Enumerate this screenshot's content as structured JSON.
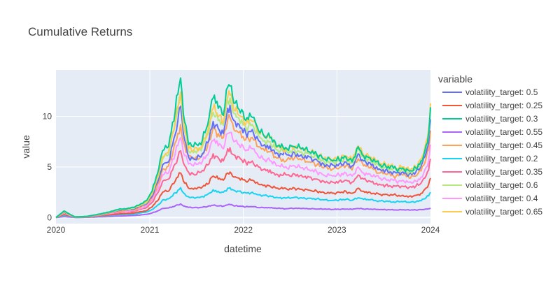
{
  "chart_data": {
    "type": "line",
    "title": "Cumulative Returns",
    "xlabel": "datetime",
    "ylabel": "value",
    "xlim": [
      "2020-01-01",
      "2024-01-01"
    ],
    "ylim": [
      -0.6,
      14.6
    ],
    "x_ticks": [
      "2020",
      "2021",
      "2022",
      "2023",
      "2024"
    ],
    "y_ticks": [
      0,
      5,
      10
    ],
    "grid": true,
    "legend": {
      "title": "variable",
      "placement": "right"
    },
    "x": [
      "2020-01-01",
      "2020-02-01",
      "2020-03-15",
      "2020-05-01",
      "2020-07-01",
      "2020-09-01",
      "2020-11-01",
      "2020-12-20",
      "2021-01-10",
      "2021-02-05",
      "2021-02-20",
      "2021-03-15",
      "2021-04-10",
      "2021-05-01",
      "2021-05-12",
      "2021-06-01",
      "2021-06-20",
      "2021-07-20",
      "2021-08-15",
      "2021-09-05",
      "2021-09-25",
      "2021-10-15",
      "2021-11-01",
      "2021-11-10",
      "2021-11-25",
      "2021-12-15",
      "2022-01-10",
      "2022-02-05",
      "2022-03-01",
      "2022-03-25",
      "2022-04-15",
      "2022-05-10",
      "2022-06-20",
      "2022-07-20",
      "2022-08-15",
      "2022-09-15",
      "2022-10-15",
      "2022-11-10",
      "2022-12-15",
      "2023-01-10",
      "2023-02-05",
      "2023-03-01",
      "2023-03-25",
      "2023-04-15",
      "2023-05-10",
      "2023-06-15",
      "2023-07-10",
      "2023-08-20",
      "2023-09-15",
      "2023-10-10",
      "2023-11-05",
      "2023-11-25",
      "2023-12-10",
      "2023-12-25",
      "2024-01-01"
    ],
    "series": [
      {
        "name": "volatility_target: 0.5",
        "color": "#636efa",
        "values": [
          0,
          0.55,
          0.05,
          0.1,
          0.35,
          0.7,
          0.85,
          1.4,
          2.1,
          3.8,
          5.2,
          5.5,
          8.2,
          11.0,
          8.3,
          6.0,
          5.8,
          6.0,
          7.4,
          9.5,
          8.8,
          8.3,
          10.8,
          11.1,
          9.6,
          9.2,
          8.4,
          8.7,
          7.6,
          7.2,
          7.1,
          6.4,
          6.2,
          6.4,
          6.2,
          6.0,
          5.7,
          5.3,
          5.2,
          5.3,
          5.5,
          5.1,
          6.3,
          5.6,
          5.4,
          4.8,
          4.7,
          4.4,
          4.5,
          4.3,
          4.5,
          5.1,
          6.0,
          7.4,
          9.7
        ]
      },
      {
        "name": "volatility_target: 0.25",
        "color": "#ef553b",
        "values": [
          0,
          0.3,
          0.03,
          0.05,
          0.2,
          0.35,
          0.45,
          0.7,
          1.05,
          1.8,
          2.5,
          2.6,
          3.6,
          4.4,
          3.6,
          2.9,
          2.8,
          2.9,
          3.3,
          4.1,
          3.8,
          3.7,
          4.4,
          4.5,
          4.0,
          3.9,
          3.6,
          3.7,
          3.3,
          3.2,
          3.1,
          2.9,
          2.8,
          2.9,
          2.8,
          2.7,
          2.6,
          2.5,
          2.4,
          2.5,
          2.6,
          2.4,
          2.9,
          2.6,
          2.5,
          2.3,
          2.3,
          2.2,
          2.2,
          2.1,
          2.2,
          2.4,
          2.8,
          3.3,
          3.9
        ]
      },
      {
        "name": "volatility_target: 0.3",
        "color": "#00cc96",
        "values": [
          0,
          0.65,
          0.06,
          0.12,
          0.4,
          0.8,
          1.0,
          1.7,
          2.6,
          4.8,
          6.6,
          7.0,
          10.5,
          13.8,
          10.2,
          7.2,
          7.0,
          7.2,
          9.2,
          11.8,
          10.8,
          10.1,
          12.9,
          13.0,
          11.3,
          10.7,
          9.6,
          9.9,
          8.6,
          8.0,
          7.9,
          7.0,
          6.8,
          7.0,
          6.8,
          6.5,
          6.2,
          5.8,
          5.6,
          5.7,
          6.0,
          5.5,
          7.0,
          6.1,
          5.9,
          5.2,
          5.1,
          4.8,
          4.9,
          4.6,
          4.9,
          5.6,
          6.6,
          8.4,
          10.9
        ]
      },
      {
        "name": "volatility_target: 0.55",
        "color": "#ab63fa",
        "values": [
          0,
          0.1,
          0.01,
          0.02,
          0.08,
          0.15,
          0.2,
          0.32,
          0.45,
          0.7,
          0.9,
          0.95,
          1.15,
          1.35,
          1.15,
          1.0,
          0.97,
          1.0,
          1.1,
          1.2,
          1.15,
          1.12,
          1.25,
          1.27,
          1.15,
          1.12,
          1.05,
          1.07,
          0.98,
          0.96,
          0.95,
          0.9,
          0.88,
          0.9,
          0.88,
          0.86,
          0.84,
          0.82,
          0.8,
          0.81,
          0.83,
          0.8,
          0.9,
          0.84,
          0.82,
          0.78,
          0.77,
          0.75,
          0.76,
          0.74,
          0.75,
          0.78,
          0.82,
          0.87,
          0.95
        ]
      },
      {
        "name": "volatility_target: 0.45",
        "color": "#ffa15a",
        "values": [
          0,
          0.5,
          0.05,
          0.09,
          0.32,
          0.62,
          0.78,
          1.3,
          2.0,
          3.5,
          4.8,
          5.1,
          7.4,
          9.2,
          7.5,
          6.1,
          5.9,
          6.1,
          7.2,
          8.9,
          8.3,
          7.9,
          9.7,
          9.9,
          8.7,
          8.4,
          7.7,
          7.9,
          7.0,
          6.6,
          6.5,
          5.9,
          5.7,
          5.9,
          5.7,
          5.5,
          5.2,
          4.9,
          4.8,
          4.9,
          5.1,
          4.7,
          5.8,
          5.1,
          4.9,
          4.4,
          4.3,
          4.1,
          4.2,
          3.9,
          4.1,
          4.6,
          5.4,
          6.7,
          8.6
        ]
      },
      {
        "name": "volatility_target: 0.2",
        "color": "#19d3f3",
        "values": [
          0,
          0.2,
          0.02,
          0.04,
          0.15,
          0.28,
          0.35,
          0.55,
          0.8,
          1.3,
          1.75,
          1.85,
          2.45,
          2.95,
          2.45,
          2.05,
          2.0,
          2.05,
          2.3,
          2.75,
          2.6,
          2.5,
          2.9,
          2.95,
          2.7,
          2.6,
          2.45,
          2.5,
          2.25,
          2.2,
          2.15,
          2.0,
          1.95,
          2.0,
          1.95,
          1.9,
          1.85,
          1.75,
          1.7,
          1.75,
          1.8,
          1.7,
          1.95,
          1.8,
          1.75,
          1.65,
          1.6,
          1.55,
          1.56,
          1.5,
          1.55,
          1.65,
          1.85,
          2.15,
          2.5
        ]
      },
      {
        "name": "volatility_target: 0.35",
        "color": "#ff6692",
        "values": [
          0,
          0.4,
          0.04,
          0.07,
          0.26,
          0.5,
          0.62,
          1.0,
          1.5,
          2.6,
          3.6,
          3.8,
          5.3,
          6.6,
          5.4,
          4.5,
          4.3,
          4.5,
          5.2,
          6.3,
          5.9,
          5.6,
          6.8,
          6.9,
          6.2,
          6.0,
          5.5,
          5.6,
          5.0,
          4.8,
          4.7,
          4.3,
          4.2,
          4.3,
          4.2,
          4.0,
          3.8,
          3.6,
          3.5,
          3.6,
          3.7,
          3.5,
          4.2,
          3.8,
          3.6,
          3.3,
          3.2,
          3.1,
          3.1,
          3.0,
          3.1,
          3.4,
          3.9,
          4.7,
          5.8
        ]
      },
      {
        "name": "volatility_target: 0.6",
        "color": "#b6e880",
        "values": [
          0,
          0.58,
          0.055,
          0.11,
          0.37,
          0.75,
          0.92,
          1.5,
          2.3,
          4.2,
          5.8,
          6.2,
          9.2,
          12.0,
          9.1,
          6.6,
          6.4,
          6.6,
          8.2,
          10.4,
          9.6,
          9.1,
          11.6,
          11.8,
          10.3,
          9.8,
          8.9,
          9.2,
          8.1,
          7.6,
          7.5,
          6.7,
          6.5,
          6.7,
          6.5,
          6.3,
          6.0,
          5.6,
          5.5,
          5.6,
          5.9,
          5.4,
          6.8,
          6.0,
          5.8,
          5.1,
          5.0,
          4.7,
          4.8,
          4.5,
          4.8,
          5.5,
          6.5,
          8.2,
          10.7
        ]
      },
      {
        "name": "volatility_target: 0.4",
        "color": "#ff97ff",
        "values": [
          0,
          0.45,
          0.045,
          0.08,
          0.29,
          0.56,
          0.7,
          1.15,
          1.75,
          3.0,
          4.2,
          4.4,
          6.3,
          7.9,
          6.4,
          5.3,
          5.1,
          5.3,
          6.2,
          7.6,
          7.1,
          6.8,
          8.3,
          8.4,
          7.5,
          7.2,
          6.6,
          6.8,
          6.0,
          5.7,
          5.6,
          5.1,
          4.9,
          5.1,
          4.9,
          4.7,
          4.5,
          4.2,
          4.1,
          4.2,
          4.4,
          4.1,
          5.0,
          4.4,
          4.3,
          3.9,
          3.8,
          3.6,
          3.7,
          3.5,
          3.6,
          4.0,
          4.7,
          5.7,
          7.2
        ]
      },
      {
        "name": "volatility_target: 0.65",
        "color": "#fecb52",
        "values": [
          0,
          0.6,
          0.06,
          0.115,
          0.39,
          0.78,
          0.96,
          1.55,
          2.4,
          4.4,
          6.0,
          6.5,
          9.5,
          12.4,
          9.4,
          6.8,
          6.6,
          6.9,
          8.5,
          10.8,
          10.0,
          9.4,
          11.9,
          12.1,
          10.6,
          10.1,
          9.2,
          9.5,
          8.4,
          7.9,
          7.8,
          6.9,
          6.7,
          6.9,
          6.7,
          6.5,
          6.2,
          5.8,
          5.7,
          5.8,
          6.1,
          5.6,
          7.1,
          6.2,
          6.0,
          5.3,
          5.2,
          4.9,
          5.0,
          4.7,
          5.0,
          5.8,
          6.9,
          8.7,
          11.3
        ]
      }
    ]
  }
}
